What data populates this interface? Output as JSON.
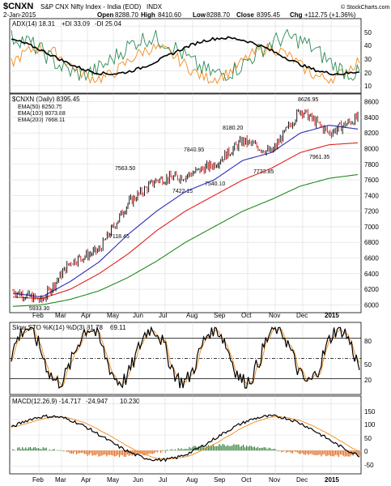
{
  "header": {
    "symbol": "$CNXN",
    "name": "S&P CNX Nifty Index - India (EOD)",
    "exchange": "INDX",
    "date": "2-Jan-2015",
    "watermark": "© StockCharts.com",
    "open_label": "Open",
    "open": "8288.70",
    "high_label": "High",
    "high": "8410.60",
    "low_label": "Low",
    "low": "8288.70",
    "close_label": "Close",
    "close": "8395.45",
    "chg_label": "Chg",
    "chg": "+112.75 (+1.36%)"
  },
  "colors": {
    "adx": "#000000",
    "plus_di": "#2e8b57",
    "minus_di": "#f28a1a",
    "ema50": "#2b2bb5",
    "ema100": "#e0201c",
    "ema200": "#1e8a1e",
    "price_up": "#000000",
    "price_down": "#d01010",
    "macd_pos": "#2e7d32",
    "macd_neg": "#e06010"
  },
  "adx_panel": {
    "label": "ADX(14) 18.31",
    "plus_label": "+DI 33.09",
    "minus_label": "-DI 25.04",
    "ticks": [
      "50",
      "40",
      "30",
      "20",
      "10"
    ]
  },
  "price_panel": {
    "label": "$CNXN (Daily) 8395.45",
    "ema50_label": "EMA(50) 8250.75",
    "ema100_label": "EMA(100) 8073.88",
    "ema200_label": "EMA(200) 7668.11",
    "ticks": [
      "8600",
      "8400",
      "8200",
      "8000",
      "7800",
      "7600",
      "7400",
      "7200",
      "7000",
      "6800",
      "6600",
      "6400",
      "6200",
      "6000"
    ],
    "annotations": [
      "5933.30",
      "7118.45",
      "7563.50",
      "7422.15",
      "7540.10",
      "7840.95",
      "8180.20",
      "7723.85",
      "8626.95",
      "7961.35"
    ]
  },
  "sto_panel": {
    "label": "Slow STO %K(14) %D(3) 81.78",
    "d_label": "69.11",
    "ticks": [
      "80",
      "50",
      "20"
    ]
  },
  "macd_panel": {
    "label": "MACD(12,26,9) -14.717",
    "signal_label": "-24.947",
    "hist_label": "10.230",
    "ticks": [
      "150",
      "100",
      "50",
      "0",
      "-50"
    ]
  },
  "x_axis": {
    "labels": [
      "Feb",
      "Mar",
      "Apr",
      "May",
      "Jun",
      "Jul",
      "Aug",
      "Sep",
      "Oct",
      "Nov",
      "Dec",
      "2015"
    ]
  },
  "chart_data": {
    "type": "line",
    "x": [
      "Jan-14",
      "Feb-14",
      "Mar-14",
      "Apr-14",
      "May-14",
      "Jun-14",
      "Jul-14",
      "Aug-14",
      "Sep-14",
      "Oct-14",
      "Nov-14",
      "Dec-14",
      "Jan-15"
    ],
    "series": [
      {
        "name": "$CNXN",
        "values": [
          6180,
          6050,
          6550,
          6700,
          7300,
          7600,
          7650,
          7800,
          8100,
          7950,
          8500,
          8200,
          8395
        ]
      },
      {
        "name": "EMA(50)",
        "values": [
          6150,
          6100,
          6300,
          6550,
          6900,
          7200,
          7450,
          7600,
          7850,
          7950,
          8200,
          8300,
          8250
        ]
      },
      {
        "name": "EMA(100)",
        "values": [
          6100,
          6080,
          6200,
          6400,
          6650,
          6950,
          7200,
          7400,
          7600,
          7750,
          7950,
          8050,
          8074
        ]
      },
      {
        "name": "EMA(200)",
        "values": [
          5980,
          6000,
          6070,
          6180,
          6350,
          6560,
          6800,
          7000,
          7200,
          7350,
          7520,
          7620,
          7668
        ]
      }
    ],
    "ylim": [
      5900,
      8700
    ]
  }
}
